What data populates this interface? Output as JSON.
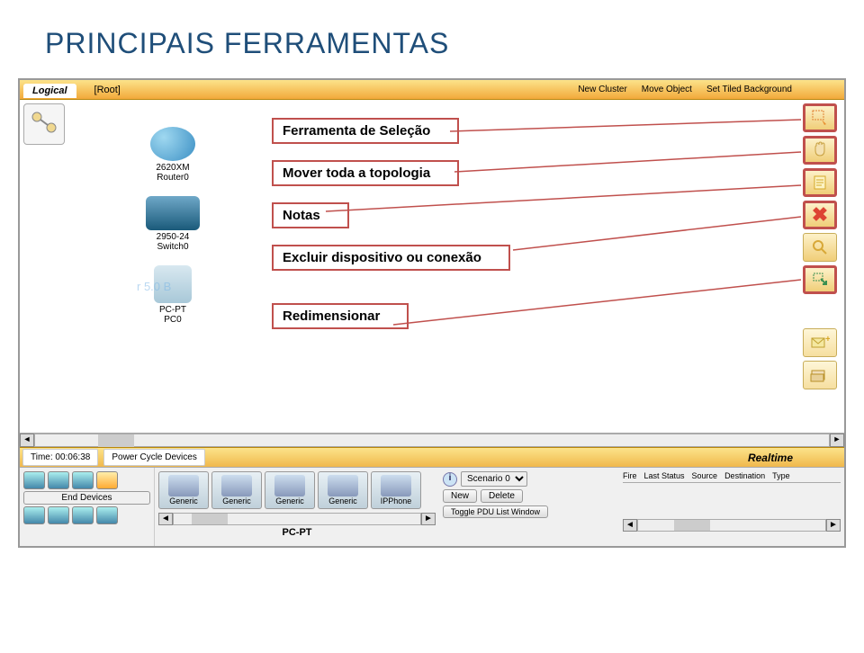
{
  "slide": {
    "title": "PRINCIPAIS FERRAMENTAS"
  },
  "topbar": {
    "logical": "Logical",
    "root": "[Root]",
    "new_cluster": "New Cluster",
    "move_object": "Move Object",
    "set_tiled_bg": "Set Tiled Background"
  },
  "devices": {
    "router": {
      "model": "2620XM",
      "name": "Router0"
    },
    "switch": {
      "model": "2950-24",
      "name": "Switch0"
    },
    "pc": {
      "model": "PC-PT",
      "name": "PC0"
    }
  },
  "watermark": "r 5.0 B",
  "callouts": {
    "selection": "Ferramenta de Seleção",
    "move": "Mover toda a topologia",
    "notes": "Notas",
    "delete": "Excluir dispositivo ou conexão",
    "resize": "Redimensionar"
  },
  "tools": {
    "select": "select-tool",
    "hand": "hand-tool",
    "note": "note-tool",
    "delete": "delete-tool",
    "inspect": "inspect-tool",
    "resize": "resize-tool",
    "add_simple_pdu": "add-simple-pdu-tool",
    "add_complex_pdu": "add-complex-pdu-tool"
  },
  "status": {
    "time_label": "Time: 00:06:38",
    "power_cycle": "Power Cycle Devices",
    "realtime": "Realtime"
  },
  "bottompanel": {
    "end_devices_label": "End Devices",
    "thumbs": [
      "Generic",
      "Generic",
      "Generic",
      "Generic",
      "IPPhone"
    ],
    "pcpt": "PC-PT",
    "scenario": {
      "default": "Scenario 0",
      "new": "New",
      "delete": "Delete",
      "toggle": "Toggle PDU List Window"
    },
    "columns": [
      "Fire",
      "Last Status",
      "Source",
      "Destination",
      "Type"
    ]
  },
  "colors": {
    "title": "#1f4e79",
    "callout_border": "#c0504d",
    "toolbar_bg_top": "#fce38a",
    "toolbar_bg_bottom": "#f0b84c"
  }
}
